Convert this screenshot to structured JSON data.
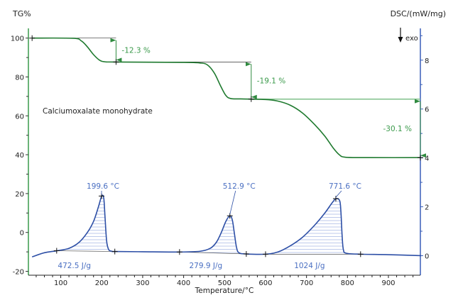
{
  "chart_data": {
    "type": "line",
    "title": "",
    "annotation_sample": "Calciumoxalate monohydrate",
    "xlabel": "Temperature/°C",
    "ylabel_left": "TG%",
    "ylabel_right": "DSC/(mW/mg)",
    "exo_label": "exo",
    "xlim": [
      21,
      978
    ],
    "ylim_left": [
      -22,
      105
    ],
    "ylim_right": [
      -0.8,
      9.3
    ],
    "x_ticks": [
      100,
      200,
      300,
      400,
      500,
      600,
      700,
      800,
      900
    ],
    "y_ticks_left": [
      -20,
      0,
      20,
      40,
      60,
      80,
      100
    ],
    "y_ticks_right": [
      0,
      2,
      4,
      6,
      8
    ],
    "grid": false,
    "colors": {
      "tg": "#1f7a2f",
      "tg_annotation": "#3b9a4b",
      "dsc": "#2d4fa6",
      "dsc_annotation": "#4a6fc2",
      "right_axis": "#3a5fb8",
      "left_axis": "#3a9a4b"
    },
    "series": [
      {
        "axis": "left",
        "points": [
          [
            30,
            100
          ],
          [
            130,
            99.9
          ],
          [
            150,
            98.6
          ],
          [
            165,
            95.5
          ],
          [
            180,
            91.5
          ],
          [
            195,
            88.6
          ],
          [
            208,
            87.8
          ],
          [
            235,
            87.7
          ],
          [
            400,
            87.5
          ],
          [
            440,
            87.2
          ],
          [
            458,
            86.2
          ],
          [
            475,
            82
          ],
          [
            490,
            75.5
          ],
          [
            503,
            70.5
          ],
          [
            515,
            68.9
          ],
          [
            540,
            68.7
          ],
          [
            600,
            68.4
          ],
          [
            630,
            67.6
          ],
          [
            660,
            65.5
          ],
          [
            690,
            61.5
          ],
          [
            720,
            55.5
          ],
          [
            745,
            49.5
          ],
          [
            765,
            43.5
          ],
          [
            780,
            40
          ],
          [
            795,
            38.7
          ],
          [
            850,
            38.5
          ],
          [
            980,
            38.5
          ]
        ]
      },
      {
        "axis": "right",
        "points": [
          [
            30,
            -0.05
          ],
          [
            60,
            0.12
          ],
          [
            90,
            0.2
          ],
          [
            120,
            0.3
          ],
          [
            145,
            0.55
          ],
          [
            165,
            0.95
          ],
          [
            180,
            1.4
          ],
          [
            192,
            2.0
          ],
          [
            200,
            2.44
          ],
          [
            205,
            2.35
          ],
          [
            208,
            1.6
          ],
          [
            212,
            0.6
          ],
          [
            217,
            0.25
          ],
          [
            225,
            0.18
          ],
          [
            232,
            0.17
          ],
          [
            300,
            0.16
          ],
          [
            390,
            0.15
          ],
          [
            440,
            0.18
          ],
          [
            465,
            0.3
          ],
          [
            480,
            0.55
          ],
          [
            492,
            0.95
          ],
          [
            503,
            1.4
          ],
          [
            513,
            1.63
          ],
          [
            519,
            1.45
          ],
          [
            524,
            0.9
          ],
          [
            529,
            0.35
          ],
          [
            535,
            0.12
          ],
          [
            553,
            0.07
          ],
          [
            600,
            0.06
          ],
          [
            630,
            0.15
          ],
          [
            660,
            0.4
          ],
          [
            690,
            0.75
          ],
          [
            720,
            1.25
          ],
          [
            745,
            1.75
          ],
          [
            762,
            2.15
          ],
          [
            772,
            2.33
          ],
          [
            781,
            2.25
          ],
          [
            784,
            1.8
          ],
          [
            787,
            0.8
          ],
          [
            790,
            0.25
          ],
          [
            797,
            0.1
          ],
          [
            832,
            0.06
          ],
          [
            900,
            0.04
          ],
          [
            980,
            0.0
          ]
        ]
      }
    ],
    "tg_steps": [
      {
        "label": "-12.3 %",
        "x": 235,
        "from": 100,
        "to": 87.7,
        "ref_start": 30
      },
      {
        "label": "-19.1 %",
        "x": 565,
        "from": 87.7,
        "to": 68.6,
        "ref_start": 235
      },
      {
        "label": "-30.1 %",
        "x": 978,
        "from": 68.6,
        "to": 38.5,
        "ref_start": 565
      }
    ],
    "tg_markers": [
      [
        30,
        100
      ],
      [
        235,
        87.7
      ],
      [
        565,
        68.6
      ],
      [
        978,
        38.5
      ]
    ],
    "dsc_peaks": [
      {
        "peak_label": "199.6 °C",
        "peak": [
          199.6,
          2.44
        ],
        "area_label": "472.5 J/g",
        "start": [
          90,
          0.2
        ],
        "end": [
          232,
          0.17
        ]
      },
      {
        "peak_label": "512.9 °C",
        "peak": [
          512.9,
          1.63
        ],
        "area_label": "279.9 J/g",
        "start": [
          390,
          0.15
        ],
        "end": [
          553,
          0.07
        ]
      },
      {
        "peak_label": "771.6 °C",
        "peak": [
          771.6,
          2.33
        ],
        "area_label": "1024 J/g",
        "start": [
          600,
          0.06
        ],
        "end": [
          832,
          0.06
        ]
      }
    ]
  }
}
